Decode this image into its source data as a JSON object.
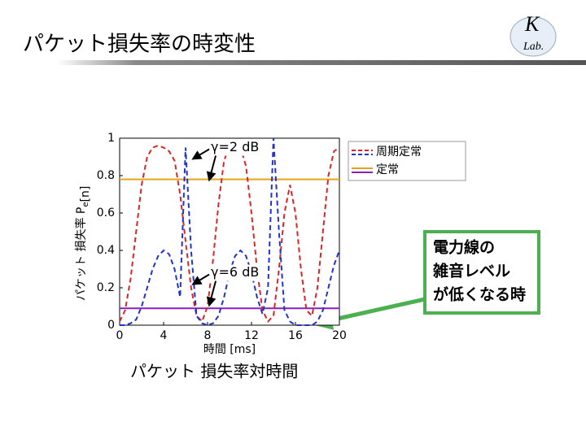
{
  "slide": {
    "title": "パケット損失率の時変性",
    "logo": [
      "K",
      "Lab."
    ],
    "caption": "パケット 損失率対時間",
    "callout": [
      "電力線の",
      "雑音レベル",
      "が低くなる時"
    ]
  },
  "chart_data": {
    "type": "line",
    "xlabel": "時間 [ms]",
    "ylabel": "パケット 損失率 P",
    "ylabel_sub": "e",
    "ylabel_end": "[n]",
    "xlim": [
      0,
      20
    ],
    "xticks": [
      0,
      4,
      8,
      12,
      16,
      20
    ],
    "ylim": [
      0,
      1
    ],
    "yticks": [
      0,
      0.2,
      0.4,
      0.6,
      0.8,
      1
    ],
    "x": [
      0,
      0.5,
      1,
      1.5,
      2,
      2.5,
      3,
      3.5,
      4,
      4.5,
      5,
      5.5,
      6,
      6.5,
      7,
      7.5,
      8,
      8.5,
      9,
      9.5,
      10,
      10.5,
      11,
      11.5,
      12,
      12.5,
      13,
      13.5,
      14,
      14.5,
      15,
      15.5,
      16,
      16.5,
      17,
      17.5,
      18,
      18.5,
      19,
      19.5,
      20
    ],
    "series": [
      {
        "color": "#d62728",
        "style": "dashed",
        "values": [
          0.02,
          0.08,
          0.25,
          0.5,
          0.75,
          0.9,
          0.95,
          0.96,
          0.95,
          0.93,
          0.88,
          0.7,
          0.45,
          0.2,
          0.05,
          0.02,
          0.1,
          0.35,
          0.65,
          0.88,
          0.96,
          0.97,
          0.95,
          0.85,
          0.6,
          0.3,
          0.08,
          0.02,
          0.05,
          0.3,
          0.6,
          0.75,
          0.6,
          0.3,
          0.08,
          0.05,
          0.2,
          0.5,
          0.8,
          0.93,
          0.95
        ]
      },
      {
        "color": "#2233cc",
        "style": "dashed",
        "values": [
          0,
          0,
          0.01,
          0.03,
          0.1,
          0.2,
          0.3,
          0.37,
          0.4,
          0.38,
          0.3,
          0.15,
          0.95,
          0.4,
          0.05,
          0.01,
          0,
          0.01,
          0.05,
          0.15,
          0.28,
          0.37,
          0.4,
          0.37,
          0.28,
          0.15,
          0.06,
          0.2,
          1,
          0.5,
          0.08,
          0.02,
          0,
          0,
          0,
          0,
          0.02,
          0.08,
          0.2,
          0.32,
          0.4
        ]
      }
    ],
    "hlines": [
      {
        "value": 0.78,
        "color": "#e8a317"
      },
      {
        "value": 0.09,
        "color": "#8a1fbf"
      }
    ],
    "legend": [
      {
        "label": "周期定常",
        "colors": [
          "#d62728",
          "#2233cc"
        ],
        "style": "dashed"
      },
      {
        "label": "定常",
        "colors": [
          "#e8a317",
          "#8a1fbf"
        ],
        "style": "solid"
      }
    ],
    "annotations": [
      {
        "text": "γ=2 dB",
        "x": 8.3,
        "y": 0.95
      },
      {
        "text": "γ=6 dB",
        "x": 8.3,
        "y": 0.28
      }
    ]
  }
}
